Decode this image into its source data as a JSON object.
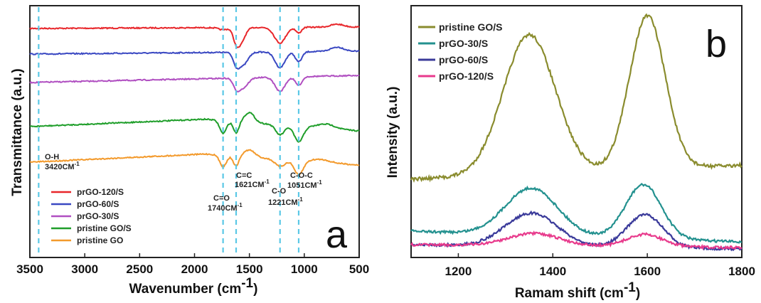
{
  "chart_data": [
    {
      "panel": "a",
      "type": "line",
      "xlabel": "Wavenumber (cm",
      "xlabel_sup": "-1",
      "xlabel_close": ")",
      "ylabel": "Transmittance (a.u.)",
      "xlim": [
        3500,
        500
      ],
      "x_reversed": true,
      "xticks": [
        "3500",
        "3000",
        "2500",
        "2000",
        "1500",
        "1000",
        "500"
      ],
      "grid": false,
      "legend_position": "bottom-left",
      "series": [
        {
          "name": "prGO-120/S",
          "color": "#e8262a"
        },
        {
          "name": "prGO-60/S",
          "color": "#3a48c2"
        },
        {
          "name": "prGO-30/S",
          "color": "#b04fc1"
        },
        {
          "name": "pristine GO/S",
          "color": "#1f9e2a"
        },
        {
          "name": "pristine GO",
          "color": "#f39a2c"
        }
      ],
      "reference_lines": [
        {
          "x": 3420,
          "label": "O-H",
          "value": "3420CM",
          "sup": "-1"
        },
        {
          "x": 1740,
          "label": "C=O",
          "value": "1740CM",
          "sup": "-1"
        },
        {
          "x": 1621,
          "label": "C=C",
          "value": "1621CM",
          "sup": "-1"
        },
        {
          "x": 1221,
          "label": "C-O",
          "value": "1221CM",
          "sup": "-1"
        },
        {
          "x": 1051,
          "label": "C-O-C",
          "value": "1051CM",
          "sup": "-1"
        }
      ],
      "reference_line_color": "#5bc8e6",
      "panel_label": "a"
    },
    {
      "panel": "b",
      "type": "line",
      "xlabel": "Ramam shift (cm",
      "xlabel_sup": "-1",
      "xlabel_close": ")",
      "ylabel": "Intensity (a.u.)",
      "xlim": [
        1100,
        1800
      ],
      "xticks": [
        "1200",
        "1400",
        "1600",
        "1800"
      ],
      "grid": false,
      "legend_position": "top-left",
      "series": [
        {
          "name": "pristine GO/S",
          "color": "#8a8c2e",
          "D_band": 1350,
          "G_band": 1600,
          "D_height": 0.8,
          "G_height": 0.88
        },
        {
          "name": "prGO-30/S",
          "color": "#23918f",
          "D_band": 1355,
          "G_band": 1592,
          "D_height": 0.27,
          "G_height": 0.31
        },
        {
          "name": "prGO-60/S",
          "color": "#3a3a9a",
          "D_band": 1355,
          "G_band": 1595,
          "D_height": 0.19,
          "G_height": 0.19
        },
        {
          "name": "prGO-120/S",
          "color": "#e83a8c",
          "D_band": 1360,
          "G_band": 1595,
          "D_height": 0.07,
          "G_height": 0.07
        }
      ],
      "panel_label": "b"
    }
  ]
}
